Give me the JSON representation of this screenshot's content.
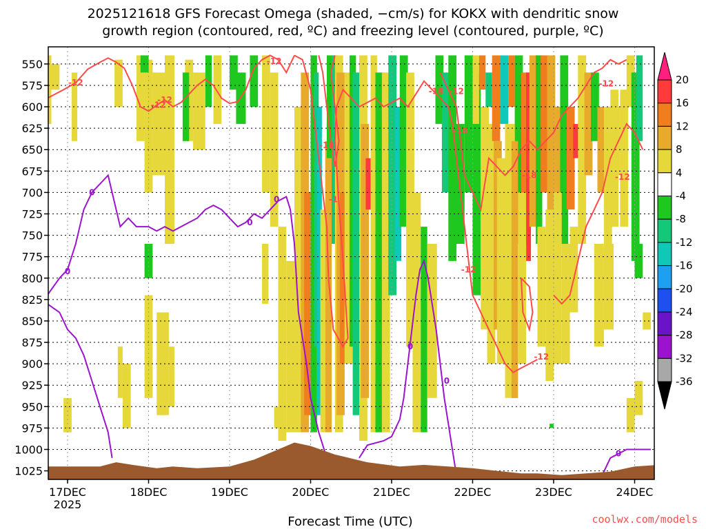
{
  "chart_data": {
    "type": "heatmap",
    "title_line1": "2025121618 GFS Forecast Omega (shaded, −cm/s) for KOKX with dendritic snow",
    "title_line2": "growth region (contoured, red, ºC) and freezing level (contoured, purple, ºC)",
    "xlabel": "Forecast Time (UTC)",
    "x_ticks": [
      "17DEC",
      "18DEC",
      "19DEC",
      "20DEC",
      "21DEC",
      "22DEC",
      "23DEC",
      "24DEC"
    ],
    "x_year": "2025",
    "y_ticks": [
      550,
      575,
      600,
      625,
      650,
      675,
      700,
      725,
      750,
      775,
      800,
      825,
      850,
      875,
      900,
      925,
      950,
      975,
      1000,
      1025
    ],
    "y_tick_labels": [
      "550",
      "575",
      "600",
      "625",
      "650",
      "675",
      "700",
      "725",
      "750",
      "775",
      "800",
      "825",
      "850",
      "875",
      "900",
      "925",
      "950",
      "975",
      "1000",
      "1025"
    ],
    "y_range": [
      530,
      1035
    ],
    "colorbar_labels": [
      "20",
      "16",
      "12",
      "8",
      "4",
      "-4",
      "-8",
      "-12",
      "-16",
      "-20",
      "-24",
      "-28",
      "-32",
      "-36"
    ],
    "colorbar_colors": {
      "c20": "#ff1f7f",
      "c16": "#ff3a3a",
      "c12": "#f07e1e",
      "c8": "#e8aa2a",
      "c4": "#e6d83a",
      "w": "#ffffff",
      "g4": "#1ec81e",
      "g8": "#14c87a",
      "t12": "#10c8b8",
      "c16b": "#1ea0f0",
      "b20": "#1e50f0",
      "b24": "#6a14c8",
      "p28": "#9b12cf",
      "gray": "#a8a8a8",
      "black": "#000000"
    },
    "contour_labels_red": [
      "-12",
      "-12",
      "-12",
      "-12",
      "-18",
      "-18",
      "-1",
      "-12",
      "-18",
      "-12",
      "-12",
      "-18",
      "-12",
      "-12"
    ],
    "contour_labels_purple": [
      "0",
      "0",
      "0",
      "0",
      "0",
      "0",
      "0"
    ],
    "contour_colors": {
      "dgz": "#ff4a4a",
      "freezing": "#9b12cf",
      "terrain": "#9a5a2e"
    },
    "credit": "coolwx.com/models"
  }
}
